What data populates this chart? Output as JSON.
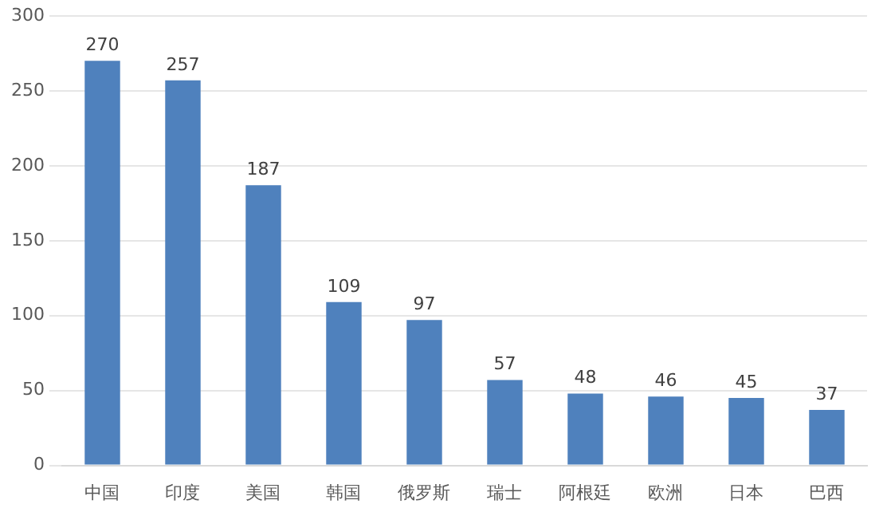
{
  "chart_data": {
    "type": "bar",
    "categories": [
      "中国",
      "印度",
      "美国",
      "韩国",
      "俄罗斯",
      "瑞士",
      "阿根廷",
      "欧洲",
      "日本",
      "巴西"
    ],
    "values": [
      270,
      257,
      187,
      109,
      97,
      57,
      48,
      46,
      45,
      37
    ],
    "color": "#4f81bd",
    "ylim": [
      0,
      300
    ],
    "yticks": [
      0,
      50,
      100,
      150,
      200,
      250,
      300
    ],
    "grid": "y",
    "data_labels": true
  }
}
